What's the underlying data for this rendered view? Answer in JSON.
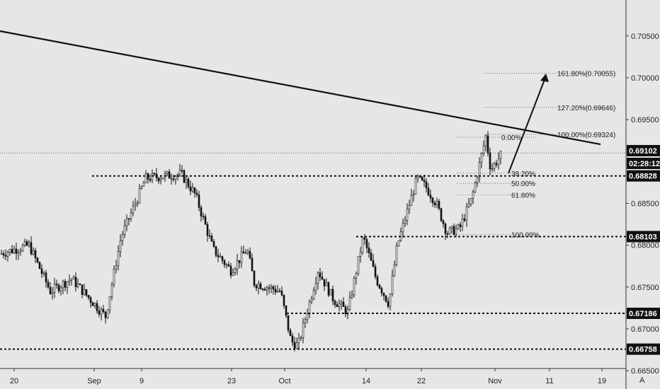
{
  "chart_data": {
    "type": "candlestick",
    "title": "",
    "xlabel": "",
    "ylabel": "",
    "ylim": [
      0.665,
      0.709
    ],
    "y_ticks": [
      "0.70500",
      "0.70000",
      "0.69500",
      "0.68500",
      "0.68000",
      "0.67500",
      "0.67000",
      "0.66500"
    ],
    "x_ticks": [
      "20",
      "Sep",
      "9",
      "23",
      "Oct",
      "14",
      "22",
      "Nov",
      "11",
      "19"
    ],
    "current_price": "0.69102",
    "countdown": "02:28:12",
    "price_tags": [
      "0.68828",
      "0.68103",
      "0.67186",
      "0.66758"
    ],
    "fib_extension": [
      {
        "label": "161.80%(0.70055)",
        "price": 0.70055
      },
      {
        "label": "127.20%(0.69646)",
        "price": 0.69646
      },
      {
        "label": "100.00%(0.69324)",
        "price": 0.69324
      }
    ],
    "fib_retracement": [
      {
        "label": "0.00%",
        "price": 0.6929
      },
      {
        "label": "38.20%",
        "price": 0.6886
      },
      {
        "label": "50.00%",
        "price": 0.6874
      },
      {
        "label": "61.80%",
        "price": 0.686
      },
      {
        "label": "100.00%",
        "price": 0.6813
      }
    ],
    "trendline": [
      {
        "x": 0,
        "y": 0.70558
      },
      {
        "x": 1,
        "y": 0.69205
      }
    ],
    "scale_mode": "A"
  }
}
